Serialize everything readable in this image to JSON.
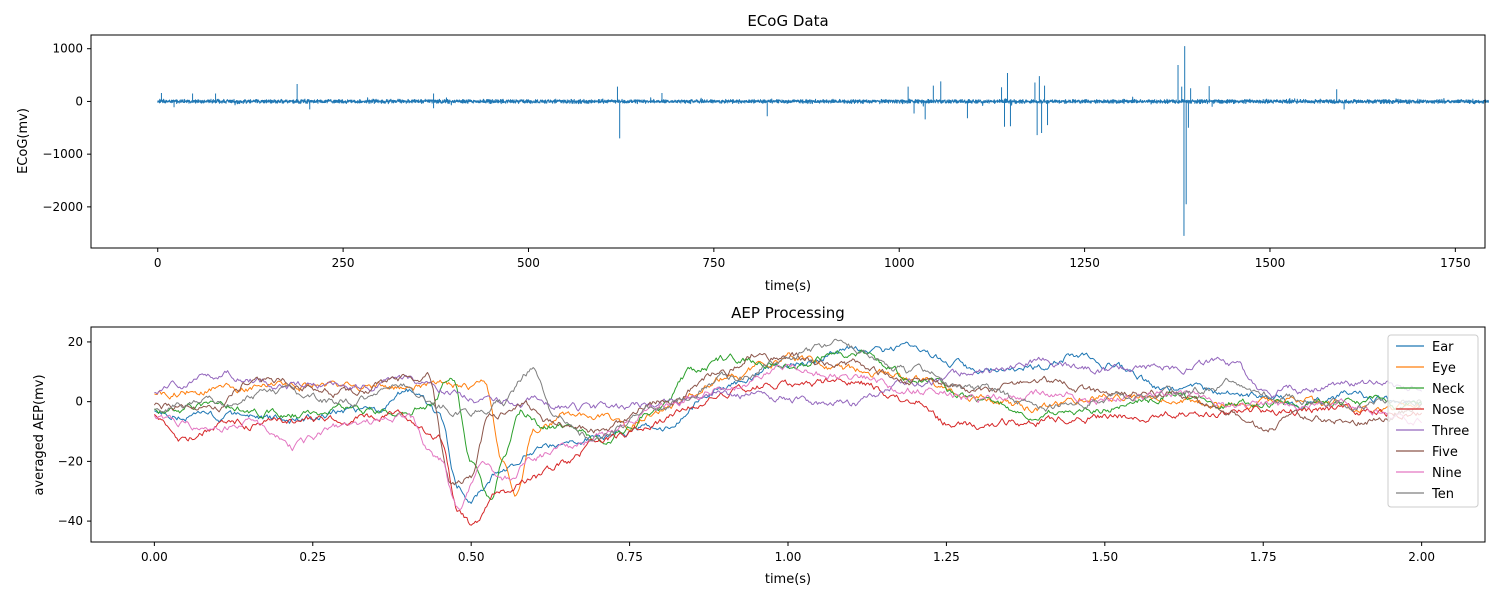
{
  "chart_data": [
    {
      "type": "line",
      "title": "ECoG Data",
      "xlabel": "time(s)",
      "ylabel": "ECoG(mv)",
      "xlim": [
        -90,
        1790
      ],
      "ylim": [
        -2780,
        1260
      ],
      "xticks": [
        0,
        250,
        500,
        750,
        1000,
        1250,
        1500,
        1750
      ],
      "xtick_labels": [
        "0",
        "250",
        "500",
        "750",
        "1000",
        "1250",
        "1500",
        "1750"
      ],
      "yticks": [
        1000,
        0,
        -1000,
        -2000
      ],
      "ytick_labels": [
        "1000",
        "0",
        "−1000",
        "−2000"
      ],
      "grid": false,
      "series": [
        {
          "color": "#1f77b4",
          "x_range": [
            0,
            1795
          ],
          "baseline": 0,
          "noise_amplitude": 45,
          "events": [
            {
              "x": 5,
              "y": 160
            },
            {
              "x": 22,
              "y": -110
            },
            {
              "x": 47,
              "y": 150
            },
            {
              "x": 78,
              "y": 150
            },
            {
              "x": 188,
              "y": 330
            },
            {
              "x": 205,
              "y": -150
            },
            {
              "x": 372,
              "y": 150
            },
            {
              "x": 372,
              "y": -130
            },
            {
              "x": 620,
              "y": 280
            },
            {
              "x": 623,
              "y": -700
            },
            {
              "x": 680,
              "y": 160
            },
            {
              "x": 822,
              "y": -280
            },
            {
              "x": 1012,
              "y": 280
            },
            {
              "x": 1020,
              "y": -230
            },
            {
              "x": 1035,
              "y": -340
            },
            {
              "x": 1046,
              "y": 300
            },
            {
              "x": 1056,
              "y": 380
            },
            {
              "x": 1092,
              "y": -320
            },
            {
              "x": 1138,
              "y": 270
            },
            {
              "x": 1142,
              "y": -480
            },
            {
              "x": 1146,
              "y": 540
            },
            {
              "x": 1150,
              "y": -470
            },
            {
              "x": 1183,
              "y": 360
            },
            {
              "x": 1186,
              "y": -640
            },
            {
              "x": 1189,
              "y": 480
            },
            {
              "x": 1192,
              "y": -600
            },
            {
              "x": 1196,
              "y": 300
            },
            {
              "x": 1200,
              "y": -450
            },
            {
              "x": 1376,
              "y": 690
            },
            {
              "x": 1381,
              "y": 280
            },
            {
              "x": 1384,
              "y": -2550
            },
            {
              "x": 1385,
              "y": 1050
            },
            {
              "x": 1387,
              "y": -1950
            },
            {
              "x": 1390,
              "y": -500
            },
            {
              "x": 1393,
              "y": 250
            },
            {
              "x": 1418,
              "y": 290
            },
            {
              "x": 1422,
              "y": -100
            },
            {
              "x": 1590,
              "y": 230
            },
            {
              "x": 1600,
              "y": -150
            }
          ]
        }
      ]
    },
    {
      "type": "line",
      "title": "AEP Processing",
      "xlabel": "time(s)",
      "ylabel": "averaged AEP(mv)",
      "xlim": [
        -0.1,
        2.1
      ],
      "ylim": [
        -47,
        25
      ],
      "xticks": [
        0.0,
        0.25,
        0.5,
        0.75,
        1.0,
        1.25,
        1.5,
        1.75,
        2.0
      ],
      "xtick_labels": [
        "0.00",
        "0.25",
        "0.50",
        "0.75",
        "1.00",
        "1.25",
        "1.50",
        "1.75",
        "2.00"
      ],
      "yticks": [
        20,
        0,
        -20,
        -40
      ],
      "ytick_labels": [
        "20",
        "0",
        "−20",
        "−40"
      ],
      "grid": false,
      "legend": "top-right",
      "series": [
        {
          "name": "Ear",
          "color": "#1f77b4",
          "points": [
            [
              0.0,
              -3
            ],
            [
              0.1,
              -5
            ],
            [
              0.2,
              -6
            ],
            [
              0.3,
              -3
            ],
            [
              0.35,
              -4
            ],
            [
              0.4,
              3
            ],
            [
              0.45,
              -5
            ],
            [
              0.48,
              -28
            ],
            [
              0.5,
              -32
            ],
            [
              0.55,
              -22
            ],
            [
              0.6,
              -17
            ],
            [
              0.65,
              -14
            ],
            [
              0.7,
              -12
            ],
            [
              0.8,
              -9
            ],
            [
              0.9,
              5
            ],
            [
              1.0,
              12
            ],
            [
              1.1,
              17
            ],
            [
              1.2,
              17
            ],
            [
              1.3,
              11
            ],
            [
              1.4,
              12
            ],
            [
              1.45,
              16
            ],
            [
              1.5,
              12
            ],
            [
              1.6,
              4
            ],
            [
              1.7,
              3
            ],
            [
              1.8,
              0
            ],
            [
              1.9,
              2
            ],
            [
              2.0,
              -2
            ]
          ]
        },
        {
          "name": "Eye",
          "color": "#ff7f0e",
          "points": [
            [
              0.0,
              3
            ],
            [
              0.1,
              4
            ],
            [
              0.2,
              5
            ],
            [
              0.3,
              6
            ],
            [
              0.4,
              5
            ],
            [
              0.45,
              6
            ],
            [
              0.5,
              5
            ],
            [
              0.52,
              8
            ],
            [
              0.55,
              -20
            ],
            [
              0.57,
              -34
            ],
            [
              0.6,
              -10
            ],
            [
              0.65,
              -4
            ],
            [
              0.7,
              -5
            ],
            [
              0.75,
              -8
            ],
            [
              0.8,
              -3
            ],
            [
              0.9,
              8
            ],
            [
              1.0,
              15
            ],
            [
              1.1,
              10
            ],
            [
              1.2,
              8
            ],
            [
              1.3,
              0
            ],
            [
              1.4,
              -2
            ],
            [
              1.5,
              2
            ],
            [
              1.6,
              0
            ],
            [
              1.7,
              -1
            ],
            [
              1.8,
              0
            ],
            [
              1.9,
              -1
            ],
            [
              2.0,
              -2
            ]
          ]
        },
        {
          "name": "Neck",
          "color": "#2ca02c",
          "points": [
            [
              0.0,
              -3
            ],
            [
              0.1,
              -1
            ],
            [
              0.2,
              -4
            ],
            [
              0.3,
              -3
            ],
            [
              0.4,
              -3
            ],
            [
              0.44,
              0
            ],
            [
              0.47,
              9
            ],
            [
              0.5,
              -20
            ],
            [
              0.53,
              -34
            ],
            [
              0.55,
              -20
            ],
            [
              0.58,
              -3
            ],
            [
              0.62,
              -8
            ],
            [
              0.7,
              -12
            ],
            [
              0.8,
              -2
            ],
            [
              0.85,
              10
            ],
            [
              0.9,
              14
            ],
            [
              1.0,
              13
            ],
            [
              1.1,
              16
            ],
            [
              1.2,
              8
            ],
            [
              1.3,
              0
            ],
            [
              1.4,
              -4
            ],
            [
              1.5,
              -2
            ],
            [
              1.6,
              2
            ],
            [
              1.7,
              0
            ],
            [
              1.8,
              -1
            ],
            [
              1.9,
              0
            ],
            [
              2.0,
              -1
            ]
          ]
        },
        {
          "name": "Nose",
          "color": "#d62728",
          "points": [
            [
              0.0,
              -5
            ],
            [
              0.05,
              -12
            ],
            [
              0.1,
              -8
            ],
            [
              0.2,
              -7
            ],
            [
              0.3,
              -6
            ],
            [
              0.38,
              -5
            ],
            [
              0.45,
              -12
            ],
            [
              0.48,
              -38
            ],
            [
              0.5,
              -42
            ],
            [
              0.55,
              -30
            ],
            [
              0.6,
              -26
            ],
            [
              0.65,
              -20
            ],
            [
              0.7,
              -14
            ],
            [
              0.8,
              -6
            ],
            [
              0.9,
              4
            ],
            [
              1.0,
              6
            ],
            [
              1.1,
              7
            ],
            [
              1.2,
              0
            ],
            [
              1.25,
              -7
            ],
            [
              1.3,
              -8
            ],
            [
              1.4,
              -6
            ],
            [
              1.5,
              -5
            ],
            [
              1.6,
              -4
            ],
            [
              1.7,
              -3
            ],
            [
              1.8,
              -3
            ],
            [
              1.9,
              -3
            ],
            [
              2.0,
              -5
            ]
          ]
        },
        {
          "name": "Three",
          "color": "#9467bd",
          "points": [
            [
              0.0,
              3
            ],
            [
              0.1,
              10
            ],
            [
              0.15,
              8
            ],
            [
              0.2,
              5
            ],
            [
              0.25,
              6
            ],
            [
              0.3,
              5
            ],
            [
              0.4,
              7
            ],
            [
              0.45,
              4
            ],
            [
              0.5,
              1
            ],
            [
              0.55,
              0
            ],
            [
              0.6,
              0
            ],
            [
              0.7,
              -3
            ],
            [
              0.8,
              0
            ],
            [
              0.9,
              3
            ],
            [
              1.0,
              1
            ],
            [
              1.1,
              -1
            ],
            [
              1.2,
              6
            ],
            [
              1.3,
              10
            ],
            [
              1.4,
              13
            ],
            [
              1.5,
              10
            ],
            [
              1.6,
              12
            ],
            [
              1.7,
              13
            ],
            [
              1.75,
              3
            ],
            [
              1.8,
              4
            ],
            [
              1.9,
              6
            ],
            [
              2.0,
              4
            ]
          ]
        },
        {
          "name": "Five",
          "color": "#8c564b",
          "points": [
            [
              0.0,
              -2
            ],
            [
              0.1,
              -3
            ],
            [
              0.15,
              6
            ],
            [
              0.2,
              7
            ],
            [
              0.3,
              3
            ],
            [
              0.4,
              8
            ],
            [
              0.43,
              8
            ],
            [
              0.47,
              -30
            ],
            [
              0.5,
              -25
            ],
            [
              0.53,
              -5
            ],
            [
              0.58,
              0
            ],
            [
              0.62,
              -6
            ],
            [
              0.7,
              -10
            ],
            [
              0.8,
              0
            ],
            [
              0.9,
              10
            ],
            [
              0.95,
              17
            ],
            [
              1.0,
              15
            ],
            [
              1.1,
              12
            ],
            [
              1.2,
              7
            ],
            [
              1.3,
              3
            ],
            [
              1.4,
              6
            ],
            [
              1.5,
              3
            ],
            [
              1.6,
              3
            ],
            [
              1.7,
              -3
            ],
            [
              1.75,
              -9
            ],
            [
              1.8,
              -5
            ],
            [
              1.9,
              -6
            ],
            [
              2.0,
              -3
            ]
          ]
        },
        {
          "name": "Nine",
          "color": "#e377c2",
          "points": [
            [
              0.0,
              -5
            ],
            [
              0.05,
              -7
            ],
            [
              0.1,
              -10
            ],
            [
              0.15,
              -6
            ],
            [
              0.22,
              -15
            ],
            [
              0.3,
              -9
            ],
            [
              0.4,
              -5
            ],
            [
              0.45,
              -20
            ],
            [
              0.48,
              -36
            ],
            [
              0.52,
              -20
            ],
            [
              0.55,
              -26
            ],
            [
              0.6,
              -18
            ],
            [
              0.65,
              -16
            ],
            [
              0.7,
              -12
            ],
            [
              0.8,
              -1
            ],
            [
              0.9,
              5
            ],
            [
              1.0,
              11
            ],
            [
              1.1,
              8
            ],
            [
              1.2,
              4
            ],
            [
              1.3,
              1
            ],
            [
              1.4,
              3
            ],
            [
              1.5,
              1
            ],
            [
              1.6,
              2
            ],
            [
              1.7,
              -2
            ],
            [
              1.8,
              -1
            ],
            [
              1.9,
              -2
            ],
            [
              2.0,
              -7
            ]
          ]
        },
        {
          "name": "Ten",
          "color": "#7f7f7f",
          "points": [
            [
              0.0,
              -2
            ],
            [
              0.1,
              0
            ],
            [
              0.2,
              3
            ],
            [
              0.3,
              0
            ],
            [
              0.4,
              4
            ],
            [
              0.45,
              -2
            ],
            [
              0.5,
              -3
            ],
            [
              0.55,
              0
            ],
            [
              0.6,
              11
            ],
            [
              0.63,
              -5
            ],
            [
              0.7,
              -12
            ],
            [
              0.8,
              -2
            ],
            [
              0.9,
              7
            ],
            [
              1.0,
              14
            ],
            [
              1.07,
              20
            ],
            [
              1.1,
              17
            ],
            [
              1.2,
              10
            ],
            [
              1.3,
              4
            ],
            [
              1.4,
              -2
            ],
            [
              1.5,
              1
            ],
            [
              1.6,
              3
            ],
            [
              1.7,
              6
            ],
            [
              1.8,
              1
            ],
            [
              1.9,
              -1
            ],
            [
              2.0,
              0
            ]
          ]
        }
      ]
    }
  ]
}
